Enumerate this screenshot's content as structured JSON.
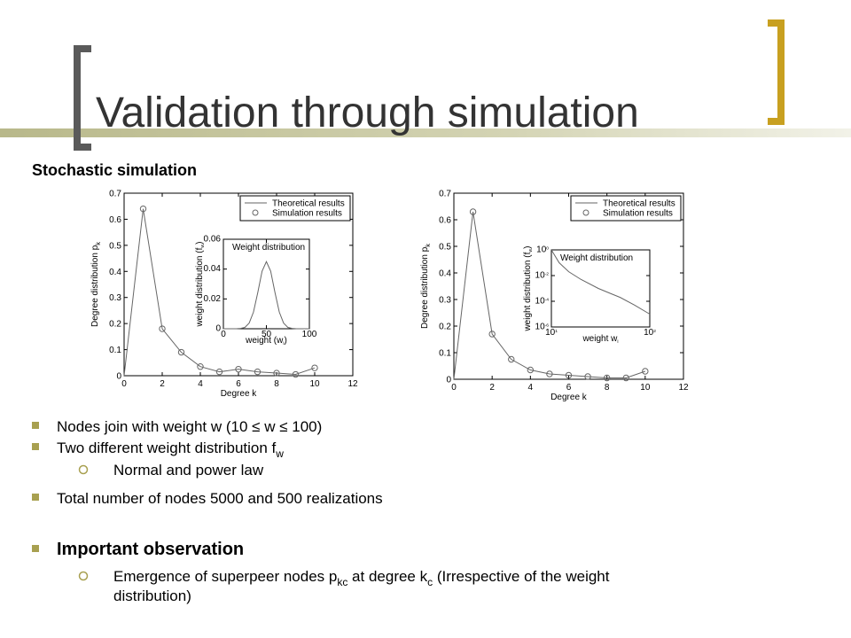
{
  "slide": {
    "title": "Validation through simulation",
    "subtitle": "Stochastic simulation",
    "bullets": [
      [
        "Nodes join with weight w (10 ≤ w ≤ 100)"
      ],
      [
        "Two different weight distribution f",
        "w"
      ],
      [
        "Normal and power law"
      ],
      [
        "Total number of nodes 5000 and 500 realizations"
      ],
      [
        "Important observation"
      ],
      [
        "Emergence of superpeer nodes p",
        "kc",
        " at degree k",
        "c",
        " (Irrespective of the weight",
        "distribution)"
      ]
    ]
  },
  "chart_data": [
    {
      "type": "line",
      "xlabel": "Degree k",
      "ylabel": [
        "Degree distribution p",
        "k"
      ],
      "xlim": [
        0,
        12
      ],
      "xticks": [
        0,
        2,
        4,
        6,
        8,
        10,
        12
      ],
      "ylim": [
        0,
        0.7
      ],
      "yticks": [
        0,
        0.1,
        0.2,
        0.3,
        0.4,
        0.5,
        0.6,
        0.7
      ],
      "legend": "upper right",
      "series": [
        {
          "name": "Theoretical results",
          "style": "line",
          "color": "#666666",
          "x": [
            0,
            1,
            2,
            3,
            4,
            5,
            6,
            7,
            8,
            9,
            10
          ],
          "values": [
            0,
            0.64,
            0.18,
            0.09,
            0.035,
            0.015,
            0.025,
            0.015,
            0.01,
            0.005,
            0.03
          ]
        },
        {
          "name": "Simulation results",
          "style": "marker",
          "color": "#666666",
          "x": [
            1,
            2,
            3,
            4,
            5,
            6,
            7,
            8,
            9,
            10
          ],
          "values": [
            0.64,
            0.18,
            0.09,
            0.035,
            0.015,
            0.025,
            0.015,
            0.01,
            0.005,
            0.03
          ]
        }
      ],
      "inset": {
        "type": "line",
        "title": "Weight distribution",
        "xlabel": [
          "weight (w",
          "i",
          ")"
        ],
        "ylabel": [
          "weight distribution (f",
          "w",
          ")"
        ],
        "xlim": [
          0,
          100
        ],
        "xticks": [
          0,
          50,
          100
        ],
        "ylim": [
          0,
          0.06
        ],
        "yticks": [
          0,
          0.02,
          0.04,
          0.06
        ],
        "series": [
          {
            "style": "line",
            "color": "#666666",
            "x": [
              0,
              5,
              10,
              15,
              20,
              25,
              30,
              35,
              40,
              45,
              50,
              55,
              60,
              65,
              70,
              75,
              80,
              85,
              90,
              95,
              100
            ],
            "values": [
              0,
              0,
              0,
              0,
              0.0002,
              0.0009,
              0.0038,
              0.0112,
              0.0243,
              0.0386,
              0.045,
              0.0386,
              0.0243,
              0.0112,
              0.0038,
              0.0009,
              0.0002,
              0,
              0,
              0,
              0
            ]
          }
        ]
      }
    },
    {
      "type": "line",
      "xlabel": "Degree k",
      "ylabel": [
        "Degree distribution p",
        "k"
      ],
      "xlim": [
        0,
        12
      ],
      "xticks": [
        0,
        2,
        4,
        6,
        8,
        10,
        12
      ],
      "ylim": [
        0,
        0.7
      ],
      "yticks": [
        0,
        0.1,
        0.2,
        0.3,
        0.4,
        0.5,
        0.6,
        0.7
      ],
      "legend": "upper right",
      "series": [
        {
          "name": "Theoretical results",
          "style": "line",
          "color": "#666666",
          "x": [
            0,
            1,
            2,
            3,
            4,
            5,
            6,
            7,
            8,
            9,
            10
          ],
          "values": [
            0,
            0.63,
            0.17,
            0.075,
            0.035,
            0.02,
            0.015,
            0.01,
            0.005,
            0.005,
            0.03
          ]
        },
        {
          "name": "Simulation results",
          "style": "marker",
          "color": "#666666",
          "x": [
            1,
            2,
            3,
            4,
            5,
            6,
            7,
            8,
            9,
            10
          ],
          "values": [
            0.63,
            0.17,
            0.075,
            0.035,
            0.02,
            0.015,
            0.01,
            0.005,
            0.005,
            0.03
          ]
        }
      ],
      "inset": {
        "type": "line",
        "title": "Weight distribution",
        "xlabel": [
          "weight w",
          "i"
        ],
        "ylabel": [
          "weight distribution (f",
          "w",
          ")"
        ],
        "log_x": true,
        "log_y": true,
        "xlim": [
          10,
          100
        ],
        "xticks": [
          {
            "value": 10,
            "label": "10",
            "exp": "1"
          },
          {
            "value": 100,
            "label": "10",
            "exp": "2"
          }
        ],
        "ylim": [
          1e-06,
          1
        ],
        "yticks": [
          {
            "value": 1,
            "label": "10",
            "exp": "0"
          },
          {
            "value": 0.01,
            "label": "10",
            "exp": "-2"
          },
          {
            "value": 0.0001,
            "label": "10",
            "exp": "-4"
          },
          {
            "value": 1e-06,
            "label": "10",
            "exp": "-6"
          }
        ],
        "series": [
          {
            "style": "line",
            "color": "#666666",
            "x": [
              10,
              12,
              15,
              20,
              30,
              40,
              50,
              70,
              100
            ],
            "values": [
              1,
              0.1,
              0.02,
              0.005,
              0.001,
              0.0004,
              0.0002,
              5e-05,
              1e-05
            ]
          }
        ]
      }
    }
  ]
}
